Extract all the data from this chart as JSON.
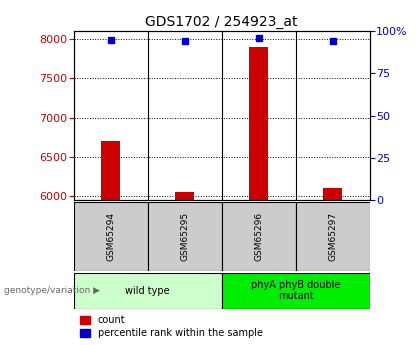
{
  "title": "GDS1702 / 254923_at",
  "samples": [
    "GSM65294",
    "GSM65295",
    "GSM65296",
    "GSM65297"
  ],
  "count_values": [
    6700,
    6055,
    7900,
    6110
  ],
  "percentile_values": [
    95,
    94,
    96,
    94
  ],
  "ylim_left": [
    5950,
    8100
  ],
  "ylim_right": [
    0,
    100
  ],
  "yticks_left": [
    6000,
    6500,
    7000,
    7500,
    8000
  ],
  "yticks_right": [
    0,
    25,
    50,
    75,
    100
  ],
  "bar_color": "#cc0000",
  "dot_color": "#0000cc",
  "groups": [
    {
      "label": "wild type",
      "samples": [
        0,
        1
      ],
      "color": "#ccffcc"
    },
    {
      "label": "phyA phyB double\nmutant",
      "samples": [
        2,
        3
      ],
      "color": "#00ee00"
    }
  ],
  "group_label_prefix": "genotype/variation",
  "legend_count_label": "count",
  "legend_percentile_label": "percentile rank within the sample",
  "sample_box_color": "#cccccc",
  "title_fontsize": 10,
  "tick_fontsize": 8,
  "label_fontsize": 7.5
}
